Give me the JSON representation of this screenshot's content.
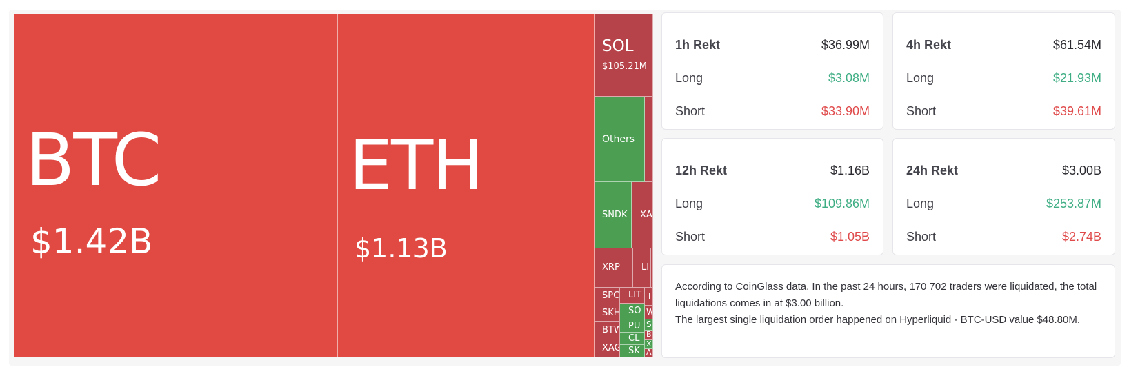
{
  "treemap": {
    "btc": {
      "symbol": "BTC",
      "value": "$1.42B"
    },
    "eth": {
      "symbol": "ETH",
      "value": "$1.13B"
    },
    "sol": {
      "symbol": "SOL",
      "value": "$105.21M"
    },
    "others": {
      "symbol": "Others"
    },
    "sndk": {
      "symbol": "SNDK"
    },
    "xa": {
      "symbol": "XA"
    },
    "xrp": {
      "symbol": "XRP"
    },
    "li": {
      "symbol": "LI"
    },
    "spc": {
      "symbol": "SPC"
    },
    "lit": {
      "symbol": "LIT"
    },
    "t": {
      "symbol": "T"
    },
    "skh": {
      "symbol": "SKH"
    },
    "so": {
      "symbol": "SO"
    },
    "w": {
      "symbol": "W"
    },
    "pu": {
      "symbol": "PU"
    },
    "s": {
      "symbol": "S"
    },
    "btw": {
      "symbol": "BTW"
    },
    "cl": {
      "symbol": "CL"
    },
    "b": {
      "symbol": "B"
    },
    "x": {
      "symbol": "X"
    },
    "xag": {
      "symbol": "XAG"
    },
    "sk": {
      "symbol": "SK"
    },
    "a": {
      "symbol": "A"
    }
  },
  "stats": [
    {
      "title": "1h Rekt",
      "total": "$36.99M",
      "long_label": "Long",
      "long": "$3.08M",
      "short_label": "Short",
      "short": "$33.90M"
    },
    {
      "title": "4h Rekt",
      "total": "$61.54M",
      "long_label": "Long",
      "long": "$21.93M",
      "short_label": "Short",
      "short": "$39.61M"
    },
    {
      "title": "12h Rekt",
      "total": "$1.16B",
      "long_label": "Long",
      "long": "$109.86M",
      "short_label": "Short",
      "short": "$1.05B"
    },
    {
      "title": "24h Rekt",
      "total": "$3.00B",
      "long_label": "Long",
      "long": "$253.87M",
      "short_label": "Short",
      "short": "$2.74B"
    }
  ],
  "summary": {
    "line1": "According to CoinGlass data, In the past 24 hours, 170 702 traders were liquidated, the total liquidations comes in at $3.00 billion.",
    "line2": "The largest single liquidation order happened on Hyperliquid - BTC-USD value $48.80M."
  },
  "colors": {
    "liquidation_red": "#e14a43",
    "dark_red": "#b6434a",
    "green": "#4c9e53",
    "long_text": "#3fae84",
    "short_text": "#e04a4a"
  }
}
